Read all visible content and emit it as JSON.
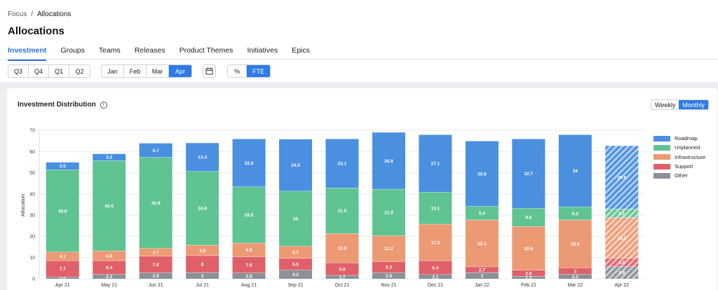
{
  "breadcrumb": {
    "parent": "Focus",
    "separator": "/",
    "current": "Allocations"
  },
  "page_title": "Allocations",
  "tabs": [
    {
      "label": "Investment",
      "active": true
    },
    {
      "label": "Groups"
    },
    {
      "label": "Teams"
    },
    {
      "label": "Releases"
    },
    {
      "label": "Product Themes"
    },
    {
      "label": "Initiatives"
    },
    {
      "label": "Epics"
    }
  ],
  "quarters": [
    {
      "label": "Q3"
    },
    {
      "label": "Q4"
    },
    {
      "label": "Q1"
    },
    {
      "label": "Q2"
    }
  ],
  "months": [
    {
      "label": "Jan"
    },
    {
      "label": "Feb"
    },
    {
      "label": "Mar"
    },
    {
      "label": "Apr",
      "active": true
    }
  ],
  "units": [
    {
      "label": "%"
    },
    {
      "label": "FTE",
      "active": true
    }
  ],
  "card": {
    "title": "Investment Distribution",
    "toggle": [
      {
        "label": "Weekly"
      },
      {
        "label": "Monthly",
        "active": true
      }
    ]
  },
  "chart_data": {
    "type": "bar",
    "stacked": true,
    "ylabel": "Allocation",
    "ylim": [
      0,
      70
    ],
    "yticks": [
      0,
      10,
      20,
      30,
      40,
      50,
      60,
      70
    ],
    "categories": [
      "Apr 21",
      "May 21",
      "Jun 21",
      "Jul 21",
      "Aug 21",
      "Sep 21",
      "Oct 21",
      "Nov 21",
      "Dec 21",
      "Jan 22",
      "Feb 22",
      "Mar 22",
      "Apr 22"
    ],
    "last_bar_hatched": true,
    "series": [
      {
        "name": "Other",
        "color": "#8a9198",
        "values": [
          0.9,
          2.2,
          2.9,
          3,
          2.8,
          4.2,
          1.7,
          2.9,
          2.1,
          3,
          1.3,
          2.2,
          5.9
        ]
      },
      {
        "name": "Support",
        "color": "#e0606a",
        "values": [
          7.7,
          6.4,
          7.8,
          8,
          7.6,
          5.5,
          5.8,
          5.3,
          6.4,
          2.7,
          2.8,
          3,
          3.8
        ]
      },
      {
        "name": "Infrastructure",
        "color": "#ec9a74",
        "values": [
          4.1,
          4.6,
          3.7,
          4.9,
          6.5,
          5.7,
          13.9,
          12.2,
          17.3,
          22.1,
          20.6,
          22.6,
          19.2
        ]
      },
      {
        "name": "Unplanned",
        "color": "#5fc492",
        "values": [
          38.8,
          42.6,
          42.9,
          34.8,
          26.5,
          26,
          21.5,
          21.9,
          15.1,
          6.4,
          8.6,
          6.2,
          4.1
        ]
      },
      {
        "name": "Roadmap",
        "color": "#4a8fe0",
        "values": [
          3.5,
          3.2,
          6.7,
          13.4,
          22.6,
          24.5,
          23.1,
          26.8,
          27.1,
          30.8,
          32.7,
          34,
          29.8
        ]
      }
    ],
    "legend_position": "right",
    "grid": true
  }
}
